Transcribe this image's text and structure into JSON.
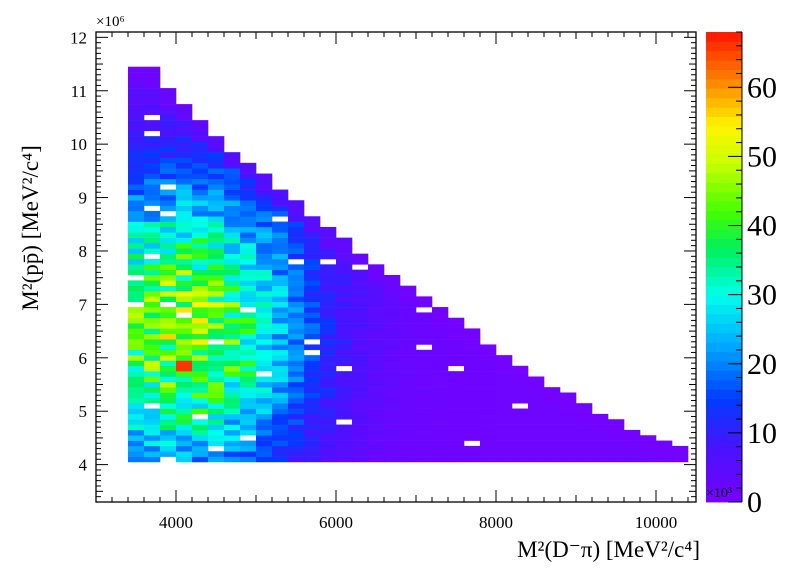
{
  "chart_data": {
    "type": "heatmap",
    "title": "",
    "xlabel": "M²(D⁻π) [MeV²/c⁴]",
    "ylabel": "M²(pp̄) [MeV²/c⁴]",
    "y_multiplier": "×10⁶",
    "z_multiplier": "×10³",
    "xlim": [
      3000,
      10500
    ],
    "ylim": [
      3.3,
      12.1
    ],
    "xticks": [
      "4000",
      "6000",
      "8000",
      "10000"
    ],
    "yticks": [
      "4",
      "5",
      "6",
      "7",
      "8",
      "9",
      "10",
      "11",
      "12"
    ],
    "zlim": [
      0,
      68
    ],
    "zticks": [
      "0",
      "10",
      "20",
      "30",
      "40",
      "50",
      "60"
    ],
    "grid": false,
    "colormap": "rainbow",
    "bin_width_x": 200,
    "bin_width_y": 0.1,
    "region": {
      "x_min": 3400,
      "x_max": 10300,
      "y_min": 4.05,
      "boundary_top": [
        {
          "x": 3500,
          "y": 11.4
        },
        {
          "x": 3700,
          "y": 11.35
        },
        {
          "x": 3900,
          "y": 10.95
        },
        {
          "x": 4100,
          "y": 10.7
        },
        {
          "x": 4300,
          "y": 10.35
        },
        {
          "x": 4500,
          "y": 10.1
        },
        {
          "x": 4700,
          "y": 9.85
        },
        {
          "x": 4900,
          "y": 9.6
        },
        {
          "x": 5100,
          "y": 9.35
        },
        {
          "x": 5300,
          "y": 9.1
        },
        {
          "x": 5500,
          "y": 8.85
        },
        {
          "x": 5700,
          "y": 8.6
        },
        {
          "x": 5900,
          "y": 8.35
        },
        {
          "x": 6100,
          "y": 8.15
        },
        {
          "x": 6300,
          "y": 7.9
        },
        {
          "x": 6500,
          "y": 7.7
        },
        {
          "x": 6700,
          "y": 7.5
        },
        {
          "x": 6900,
          "y": 7.3
        },
        {
          "x": 7100,
          "y": 7.1
        },
        {
          "x": 7300,
          "y": 6.85
        },
        {
          "x": 7500,
          "y": 6.65
        },
        {
          "x": 7700,
          "y": 6.45
        },
        {
          "x": 7900,
          "y": 6.2
        },
        {
          "x": 8100,
          "y": 6.0
        },
        {
          "x": 8300,
          "y": 5.8
        },
        {
          "x": 8500,
          "y": 5.6
        },
        {
          "x": 8700,
          "y": 5.4
        },
        {
          "x": 8900,
          "y": 5.25
        },
        {
          "x": 9100,
          "y": 5.05
        },
        {
          "x": 9300,
          "y": 4.9
        },
        {
          "x": 9500,
          "y": 4.75
        },
        {
          "x": 9700,
          "y": 4.6
        },
        {
          "x": 9900,
          "y": 4.5
        },
        {
          "x": 10100,
          "y": 4.4
        },
        {
          "x": 10300,
          "y": 4.3
        }
      ]
    },
    "density_profile": {
      "peak_x": 4000,
      "peak_y": 6.5,
      "peak_value": 45,
      "hot_bin": {
        "x": 4100,
        "y": 5.75,
        "value": 66
      }
    }
  }
}
